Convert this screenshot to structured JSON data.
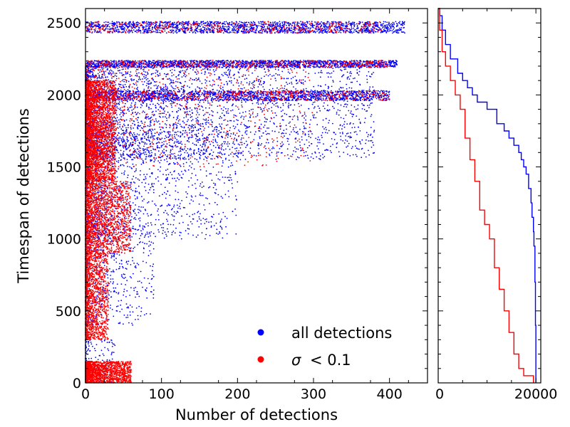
{
  "chart_data": [
    {
      "type": "scatter",
      "panel": "main",
      "title": "",
      "xlabel": "Number of detections",
      "ylabel": "Timespan of detections",
      "xlim": [
        0,
        450
      ],
      "ylim": [
        0,
        2600
      ],
      "x_ticks": [
        0,
        100,
        200,
        300,
        400
      ],
      "y_ticks": [
        0,
        500,
        1000,
        1500,
        2000,
        2500
      ],
      "x_tick_labels": [
        "0",
        "100",
        "200",
        "300",
        "400"
      ],
      "y_tick_labels": [
        "0",
        "500",
        "1000",
        "1500",
        "2000",
        "2500"
      ],
      "legend_position": "lower-right",
      "series": [
        {
          "name": "all detections",
          "color": "#0000ff",
          "clusters": [
            {
              "x": [
                0,
                420
              ],
              "y": [
                2430,
                2510
              ],
              "count": 1800,
              "x_density": "uniform"
            },
            {
              "x": [
                0,
                410
              ],
              "y": [
                2190,
                2240
              ],
              "count": 1800,
              "x_density": "uniform"
            },
            {
              "x": [
                0,
                400
              ],
              "y": [
                1960,
                2030
              ],
              "count": 1600,
              "x_density": "uniform"
            },
            {
              "x": [
                0,
                380
              ],
              "y": [
                1550,
                2200
              ],
              "count": 3000,
              "x_density": "left-heavy"
            },
            {
              "x": [
                0,
                200
              ],
              "y": [
                1000,
                1800
              ],
              "count": 1500,
              "x_density": "left-heavy"
            },
            {
              "x": [
                0,
                90
              ],
              "y": [
                400,
                1100
              ],
              "count": 600,
              "x_density": "left-heavy"
            },
            {
              "x": [
                0,
                40
              ],
              "y": [
                0,
                300
              ],
              "count": 150,
              "x_density": "left-heavy"
            }
          ]
        },
        {
          "name": "σ < 0.1",
          "label_text": "< 0.1",
          "color": "#ff0000",
          "clusters": [
            {
              "x": [
                0,
                40
              ],
              "y": [
                1400,
                2100
              ],
              "count": 3500,
              "x_density": "left-heavy"
            },
            {
              "x": [
                0,
                60
              ],
              "y": [
                900,
                1400
              ],
              "count": 2000,
              "x_density": "left-heavy"
            },
            {
              "x": [
                0,
                30
              ],
              "y": [
                300,
                900
              ],
              "count": 1500,
              "x_density": "left-heavy"
            },
            {
              "x": [
                0,
                60
              ],
              "y": [
                0,
                150
              ],
              "count": 1800,
              "x_density": "left-heavy"
            },
            {
              "x": [
                0,
                400
              ],
              "y": [
                2190,
                2240
              ],
              "count": 500,
              "x_density": "uniform"
            },
            {
              "x": [
                0,
                400
              ],
              "y": [
                1960,
                2030
              ],
              "count": 500,
              "x_density": "uniform"
            },
            {
              "x": [
                0,
                390
              ],
              "y": [
                2430,
                2510
              ],
              "count": 400,
              "x_density": "uniform"
            },
            {
              "x": [
                0,
                300
              ],
              "y": [
                1500,
                2200
              ],
              "count": 800,
              "x_density": "left-heavy"
            }
          ]
        }
      ]
    },
    {
      "type": "line",
      "panel": "side",
      "subtype": "cumulative-step",
      "xlabel": "",
      "ylabel": "",
      "xlim": [
        0,
        21000
      ],
      "ylim": [
        0,
        2600
      ],
      "x_ticks": [
        0,
        20000
      ],
      "x_tick_labels": [
        "0",
        "20000"
      ],
      "series": [
        {
          "name": "all detections",
          "color": "#0000ff",
          "x": [
            0,
            300,
            800,
            1500,
            2500,
            4000,
            5000,
            6000,
            7000,
            8000,
            10000,
            12000,
            13500,
            14500,
            15500,
            16500,
            17000,
            17500,
            18000,
            18500,
            19000,
            19200,
            19500,
            19600,
            19800,
            19900,
            20000
          ],
          "y": [
            2600,
            2550,
            2450,
            2350,
            2250,
            2150,
            2100,
            2050,
            2000,
            1950,
            1900,
            1800,
            1750,
            1700,
            1650,
            1600,
            1550,
            1500,
            1450,
            1350,
            1250,
            1150,
            1050,
            950,
            700,
            400,
            0
          ]
        },
        {
          "name": "σ < 0.1",
          "color": "#ff0000",
          "x": [
            0,
            300,
            800,
            1500,
            2500,
            3500,
            4500,
            5500,
            6500,
            7500,
            8500,
            9500,
            10500,
            11500,
            12500,
            13500,
            14500,
            15500,
            16500,
            17500,
            19500
          ],
          "y": [
            2600,
            2450,
            2300,
            2200,
            2100,
            2000,
            1900,
            1700,
            1550,
            1400,
            1200,
            1100,
            1000,
            800,
            650,
            500,
            350,
            200,
            100,
            50,
            0
          ]
        }
      ]
    }
  ]
}
